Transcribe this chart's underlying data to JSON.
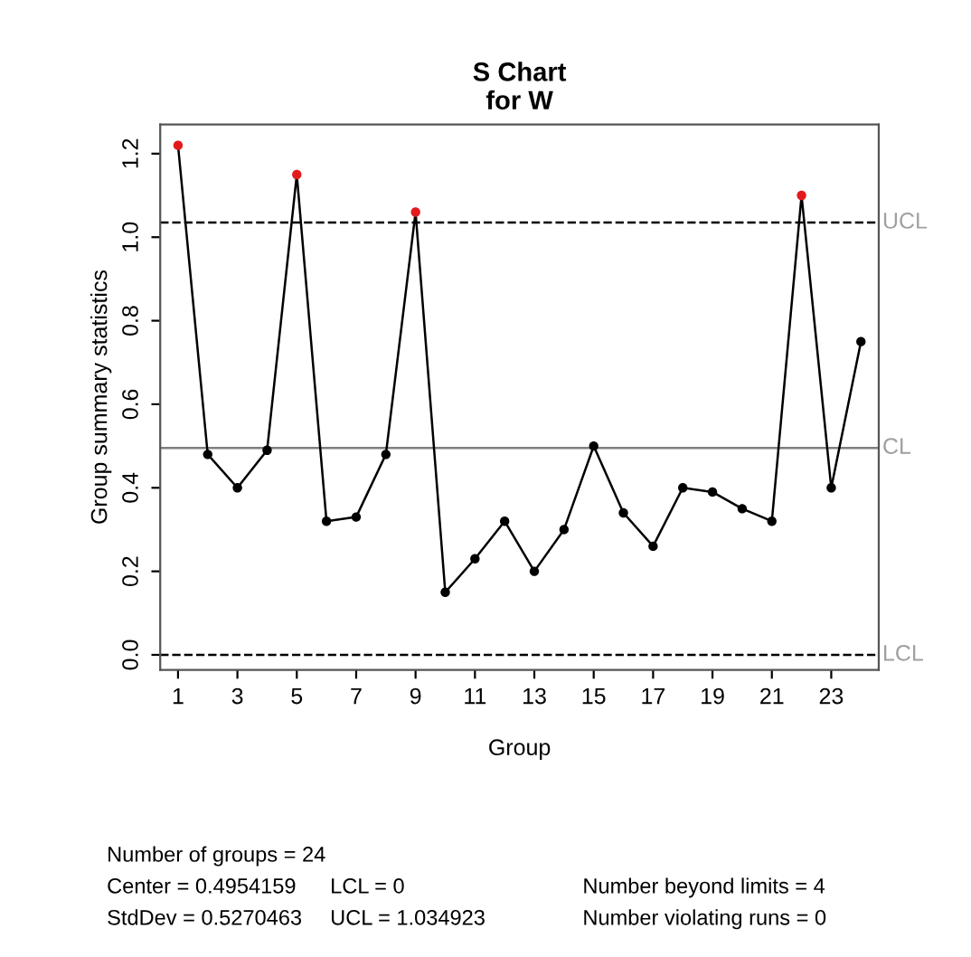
{
  "chart_data": {
    "type": "line",
    "title": "S Chart\nfor W",
    "xlabel": "Group",
    "ylabel": "Group summary statistics",
    "x": [
      1,
      2,
      3,
      4,
      5,
      6,
      7,
      8,
      9,
      10,
      11,
      12,
      13,
      14,
      15,
      16,
      17,
      18,
      19,
      20,
      21,
      22,
      23,
      24
    ],
    "series": [
      {
        "color": "#000000",
        "colors": [
          "#e31a1c",
          "#000000",
          "#000000",
          "#000000",
          "#e31a1c",
          "#000000",
          "#000000",
          "#000000",
          "#e31a1c",
          "#000000",
          "#000000",
          "#000000",
          "#000000",
          "#000000",
          "#000000",
          "#000000",
          "#000000",
          "#000000",
          "#000000",
          "#000000",
          "#000000",
          "#e31a1c",
          "#000000",
          "#000000"
        ],
        "values": [
          1.22,
          0.48,
          0.4,
          0.49,
          1.15,
          0.32,
          0.33,
          0.48,
          1.06,
          0.15,
          0.23,
          0.32,
          0.2,
          0.3,
          0.5,
          0.34,
          0.26,
          0.4,
          0.39,
          0.35,
          0.32,
          1.1,
          0.4,
          0.75
        ]
      }
    ],
    "xlim": [
      0.4,
      24.6
    ],
    "xticks": [
      1,
      3,
      5,
      7,
      9,
      11,
      13,
      15,
      17,
      19,
      21,
      23
    ],
    "ylim": [
      -0.036,
      1.27
    ],
    "yticks": [
      {
        "value": 0,
        "label": "0.0"
      },
      0.2,
      0.4,
      0.6,
      0.8,
      {
        "value": 1,
        "label": "1.0"
      },
      1.2
    ],
    "ref_lines": [
      {
        "axis": "y",
        "value": 1.034923,
        "label": "UCL",
        "line_style": "dashed",
        "color": "#000000"
      },
      {
        "axis": "y",
        "value": 0.4954159,
        "label": "CL",
        "line_style": "solid",
        "color": "#7f7f7f"
      },
      {
        "axis": "y",
        "value": 0,
        "label": "LCL",
        "line_style": "dashed",
        "color": "#000000"
      }
    ],
    "marker": "circle",
    "line_style": "solid",
    "grid": false,
    "legend": false,
    "annotations": [
      "Number of groups = 24",
      "Center = 0.4954159",
      "StdDev = 0.5270463",
      "LCL = 0",
      "UCL = 1.034923",
      "Number beyond limits = 4",
      "Number violating runs = 0"
    ]
  }
}
